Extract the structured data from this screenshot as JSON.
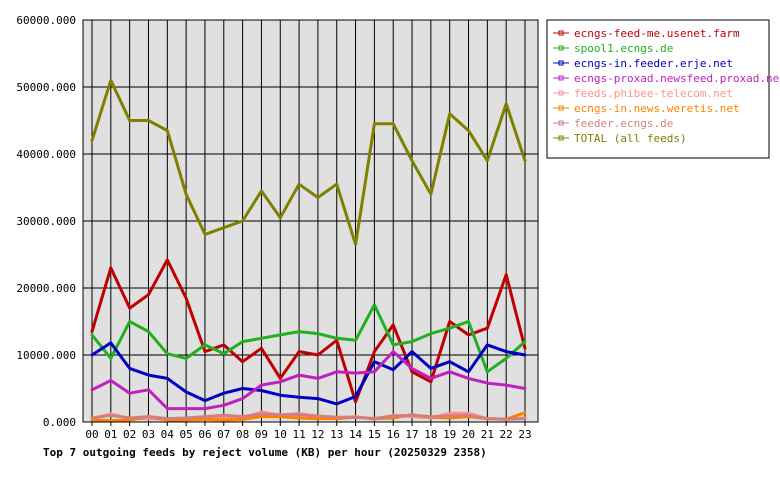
{
  "chart_data": {
    "type": "line",
    "title": "Top 7 outgoing feeds by reject volume (KB) per hour (20250329 2358)",
    "ylim": [
      0,
      60000
    ],
    "y_ticks": [
      "0.000",
      "10000.000",
      "20000.000",
      "30000.000",
      "40000.000",
      "50000.000",
      "60000.000"
    ],
    "categories": [
      "00",
      "01",
      "02",
      "03",
      "04",
      "05",
      "06",
      "07",
      "08",
      "09",
      "10",
      "11",
      "12",
      "13",
      "14",
      "15",
      "16",
      "17",
      "18",
      "19",
      "20",
      "21",
      "22",
      "23"
    ],
    "grid": true,
    "legend_position": "right",
    "series": [
      {
        "name": "ecngs-feed-me.usenet.farm",
        "color": "#c00000",
        "values": [
          13500,
          23000,
          17000,
          19000,
          24200,
          18500,
          10500,
          11500,
          9000,
          11000,
          6500,
          10500,
          10000,
          12200,
          3000,
          10500,
          14500,
          7500,
          6000,
          15000,
          13000,
          14000,
          22000,
          11000
        ]
      },
      {
        "name": "spool1.ecngs.de",
        "color": "#20b020",
        "values": [
          13000,
          9500,
          15000,
          13500,
          10200,
          9500,
          11500,
          10200,
          12000,
          12500,
          13000,
          13500,
          13200,
          12500,
          12200,
          17500,
          11500,
          12000,
          13200,
          14000,
          15000,
          7500,
          9500,
          12000
        ]
      },
      {
        "name": "ecngs-in.feeder.erje.net",
        "color": "#0000c0",
        "values": [
          10000,
          11800,
          8000,
          7000,
          6500,
          4500,
          3200,
          4300,
          5000,
          4700,
          4000,
          3700,
          3500,
          2700,
          3800,
          9000,
          7800,
          10500,
          8000,
          9000,
          7500,
          11500,
          10500,
          10000
        ]
      },
      {
        "name": "ecngs-proxad.newsfeed.proxad.net",
        "color": "#c020c0",
        "values": [
          4800,
          6200,
          4300,
          4800,
          2000,
          2000,
          2000,
          2500,
          3500,
          5500,
          6000,
          7000,
          6500,
          7500,
          7300,
          7500,
          10500,
          8000,
          6500,
          7500,
          6500,
          5800,
          5500,
          5000
        ]
      },
      {
        "name": "feeds.phibee-telecom.net",
        "color": "#ff9090",
        "values": [
          500,
          1200,
          500,
          500,
          400,
          400,
          500,
          800,
          600,
          1500,
          1000,
          1300,
          800,
          600,
          800,
          400,
          1000,
          800,
          600,
          1300,
          1300,
          500,
          400,
          600
        ]
      },
      {
        "name": "ecngs-in.news.weretis.net",
        "color": "#ff8000",
        "values": [
          300,
          200,
          300,
          800,
          300,
          300,
          400,
          300,
          400,
          800,
          800,
          600,
          500,
          500,
          700,
          500,
          600,
          1100,
          700,
          600,
          800,
          500,
          400,
          1400
        ]
      },
      {
        "name": "feeder.ecngs.de",
        "color": "#d08080",
        "values": [
          600,
          1000,
          600,
          800,
          500,
          600,
          800,
          1000,
          800,
          1200,
          1100,
          1100,
          900,
          700,
          700,
          500,
          900,
          1000,
          800,
          900,
          1000,
          500,
          400,
          500
        ]
      },
      {
        "name": "TOTAL (all feeds)",
        "color": "#808000",
        "values": [
          42000,
          51000,
          45000,
          45000,
          43500,
          34000,
          28000,
          29000,
          30000,
          34500,
          30500,
          35500,
          33500,
          35500,
          26500,
          44500,
          44500,
          39000,
          34000,
          46000,
          43500,
          39000,
          47500,
          39000
        ]
      }
    ]
  }
}
